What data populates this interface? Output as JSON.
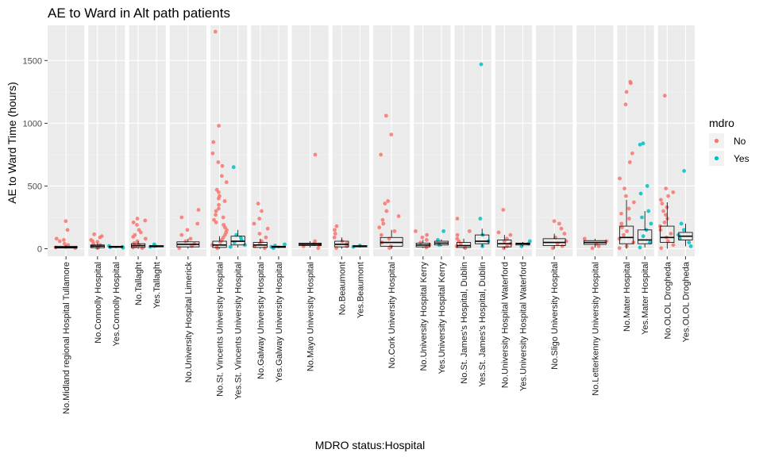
{
  "chart_data": {
    "type": "scatter",
    "subtype": "faceted-boxplot-with-jitter",
    "title": "AE to Ward in Alt path patients",
    "xlabel": "MDRO status:Hospital",
    "ylabel": "AE to Ward Time (hours)",
    "ylim": [
      -60,
      1780
    ],
    "yticks": [
      0,
      500,
      1000,
      1500
    ],
    "grid": true,
    "legend": {
      "title": "mdro",
      "position": "right",
      "entries": [
        {
          "label": "No",
          "color": "#F8766D"
        },
        {
          "label": "Yes",
          "color": "#00BFC4"
        }
      ]
    },
    "facets": [
      {
        "panel": "Midland regional Hospital Tullamore",
        "groups": [
          {
            "label": "No.Midland regional Hospital Tullamore",
            "mdro": "No",
            "box": [
              0,
              5,
              12,
              20,
              25
            ],
            "points": [
              220,
              150,
              80,
              60,
              40,
              20,
              10,
              5,
              30,
              70
            ]
          }
        ]
      },
      {
        "panel": "Connolly Hospital",
        "groups": [
          {
            "label": "No.Connolly Hospital",
            "mdro": "No",
            "box": [
              0,
              8,
              20,
              30,
              45
            ],
            "points": [
              115,
              100,
              90,
              70,
              55,
              40,
              30,
              20,
              10,
              5,
              60
            ]
          },
          {
            "label": "Yes.Connolly Hospital",
            "mdro": "Yes",
            "box": [
              5,
              10,
              15,
              20,
              22
            ],
            "points": [
              22,
              15,
              8,
              12
            ]
          }
        ]
      },
      {
        "panel": "Tallaght",
        "groups": [
          {
            "label": "No.Tallaght",
            "mdro": "No",
            "box": [
              0,
              10,
              25,
              40,
              60
            ],
            "points": [
              240,
              225,
              210,
              190,
              150,
              130,
              110,
              95,
              80,
              60,
              45,
              30,
              20,
              10,
              5
            ]
          },
          {
            "label": "Yes.Tallaght",
            "mdro": "Yes",
            "box": [
              10,
              15,
              20,
              25,
              30
            ],
            "points": [
              35,
              20,
              15
            ]
          }
        ]
      },
      {
        "panel": "University Hospital Limerick",
        "groups": [
          {
            "label": "No.University Hospital Limerick",
            "mdro": "No",
            "box": [
              0,
              15,
              35,
              55,
              80
            ],
            "points": [
              310,
              250,
              200,
              150,
              110,
              80,
              60,
              40,
              20,
              5
            ]
          }
        ]
      },
      {
        "panel": "St. Vincents University Hospital",
        "groups": [
          {
            "label": "No.St. Vincents University Hospital",
            "mdro": "No",
            "box": [
              0,
              10,
              30,
              60,
              100
            ],
            "points": [
              1730,
              980,
              850,
              760,
              690,
              660,
              580,
              530,
              470,
              450,
              420,
              400,
              380,
              350,
              320,
              300,
              270,
              250,
              230,
              210,
              190,
              170,
              150,
              130,
              110,
              90,
              70,
              50,
              30,
              10,
              5
            ]
          },
          {
            "label": "Yes.St. Vincents University Hospital",
            "mdro": "Yes",
            "box": [
              10,
              30,
              60,
              100,
              150
            ],
            "points": [
              650,
              110,
              90,
              70,
              50,
              30,
              15
            ]
          }
        ]
      },
      {
        "panel": "Galway University Hospital",
        "groups": [
          {
            "label": "No.Galway University Hospital",
            "mdro": "No",
            "box": [
              0,
              10,
              30,
              50,
              80
            ],
            "points": [
              360,
              300,
              240,
              200,
              160,
              120,
              90,
              60,
              40,
              20,
              5
            ]
          },
          {
            "label": "Yes.Galway University Hospital",
            "mdro": "Yes",
            "box": [
              5,
              10,
              15,
              20,
              25
            ],
            "points": [
              35,
              25,
              15,
              5
            ]
          }
        ]
      },
      {
        "panel": "Mayo University Hospital",
        "groups": [
          {
            "label": "No.Mayo University Hospital",
            "mdro": "No",
            "box": [
              10,
              25,
              35,
              45,
              60
            ],
            "points": [
              750,
              60,
              40,
              30,
              20,
              5
            ]
          }
        ]
      },
      {
        "panel": "Beaumont",
        "groups": [
          {
            "label": "No.Beaumont",
            "mdro": "No",
            "box": [
              0,
              15,
              35,
              60,
              90
            ],
            "points": [
              180,
              150,
              120,
              90,
              60,
              40,
              20,
              5
            ]
          },
          {
            "label": "Yes.Beaumont",
            "mdro": "Yes",
            "box": [
              10,
              15,
              20,
              25,
              30
            ],
            "points": [
              25,
              15
            ]
          }
        ]
      },
      {
        "panel": "Cork University Hospital",
        "groups": [
          {
            "label": "No.Cork University Hospital",
            "mdro": "No",
            "box": [
              0,
              20,
              50,
              90,
              150
            ],
            "points": [
              1060,
              910,
              750,
              380,
              360,
              300,
              260,
              230,
              200,
              170,
              140,
              110,
              80,
              50,
              20,
              5
            ]
          }
        ]
      },
      {
        "panel": "University Hospital Kerry",
        "groups": [
          {
            "label": "No.University Hospital Kerry",
            "mdro": "No",
            "box": [
              5,
              15,
              30,
              45,
              70
            ],
            "points": [
              140,
              110,
              90,
              70,
              50,
              30,
              10
            ]
          },
          {
            "label": "Yes.University Hospital Kerry",
            "mdro": "Yes",
            "box": [
              20,
              30,
              45,
              60,
              75
            ],
            "points": [
              140,
              70,
              30
            ]
          }
        ]
      },
      {
        "panel": "St. James's Hospital, Dublin",
        "groups": [
          {
            "label": "No.St. James's Hospital, Dublin",
            "mdro": "No",
            "box": [
              0,
              10,
              25,
              50,
              80
            ],
            "points": [
              240,
              140,
              110,
              80,
              60,
              40,
              20,
              5
            ]
          },
          {
            "label": "Yes.St. James's Hospital, Dublin",
            "mdro": "Yes",
            "box": [
              15,
              40,
              60,
              110,
              160
            ],
            "points": [
              1470,
              240,
              110,
              60,
              20
            ]
          }
        ]
      },
      {
        "panel": "University Hospital Waterford",
        "groups": [
          {
            "label": "No.University Hospital Waterford",
            "mdro": "No",
            "box": [
              0,
              15,
              40,
              70,
              110
            ],
            "points": [
              310,
              130,
              110,
              80,
              60,
              40,
              20,
              5
            ]
          },
          {
            "label": "Yes.University Hospital Waterford",
            "mdro": "Yes",
            "box": [
              20,
              30,
              40,
              45,
              55
            ],
            "points": [
              60,
              40,
              20
            ]
          }
        ]
      },
      {
        "panel": "Sligo University Hospital",
        "groups": [
          {
            "label": "No.Sligo University Hospital",
            "mdro": "No",
            "box": [
              0,
              25,
              50,
              80,
              120
            ],
            "points": [
              220,
              200,
              160,
              120,
              90,
              60,
              40,
              20,
              5
            ]
          }
        ]
      },
      {
        "panel": "Letterkenny University Hospital",
        "groups": [
          {
            "label": "No.Letterkenny University Hospital",
            "mdro": "No",
            "box": [
              10,
              35,
              50,
              65,
              80
            ],
            "points": [
              80,
              60,
              40,
              20,
              5
            ]
          }
        ]
      },
      {
        "panel": "Mater Hospital",
        "groups": [
          {
            "label": "No.Mater Hospital",
            "mdro": "No",
            "box": [
              0,
              40,
              90,
              180,
              390
            ],
            "points": [
              1330,
              1320,
              1250,
              1150,
              760,
              690,
              560,
              480,
              420,
              370,
              320,
              280,
              240,
              200,
              170,
              140,
              110,
              80,
              50,
              20,
              5
            ]
          },
          {
            "label": "Yes.Mater Hospital",
            "mdro": "Yes",
            "box": [
              10,
              40,
              70,
              150,
              300
            ],
            "points": [
              840,
              830,
              500,
              440,
              300,
              250,
              200,
              150,
              100,
              50,
              10
            ]
          }
        ]
      },
      {
        "panel": "OLOL Drogheda",
        "groups": [
          {
            "label": "No.OLOL Drogheda",
            "mdro": "No",
            "box": [
              0,
              50,
              90,
              180,
              370
            ],
            "points": [
              1220,
              480,
              450,
              420,
              390,
              360,
              330,
              300,
              270,
              240,
              210,
              180,
              150,
              120,
              90,
              60,
              30,
              5
            ]
          },
          {
            "label": "Yes.OLOL Drogheda",
            "mdro": "Yes",
            "box": [
              20,
              70,
              100,
              130,
              200
            ],
            "points": [
              620,
              200,
              150,
              110,
              80,
              50,
              20
            ]
          }
        ]
      }
    ]
  }
}
